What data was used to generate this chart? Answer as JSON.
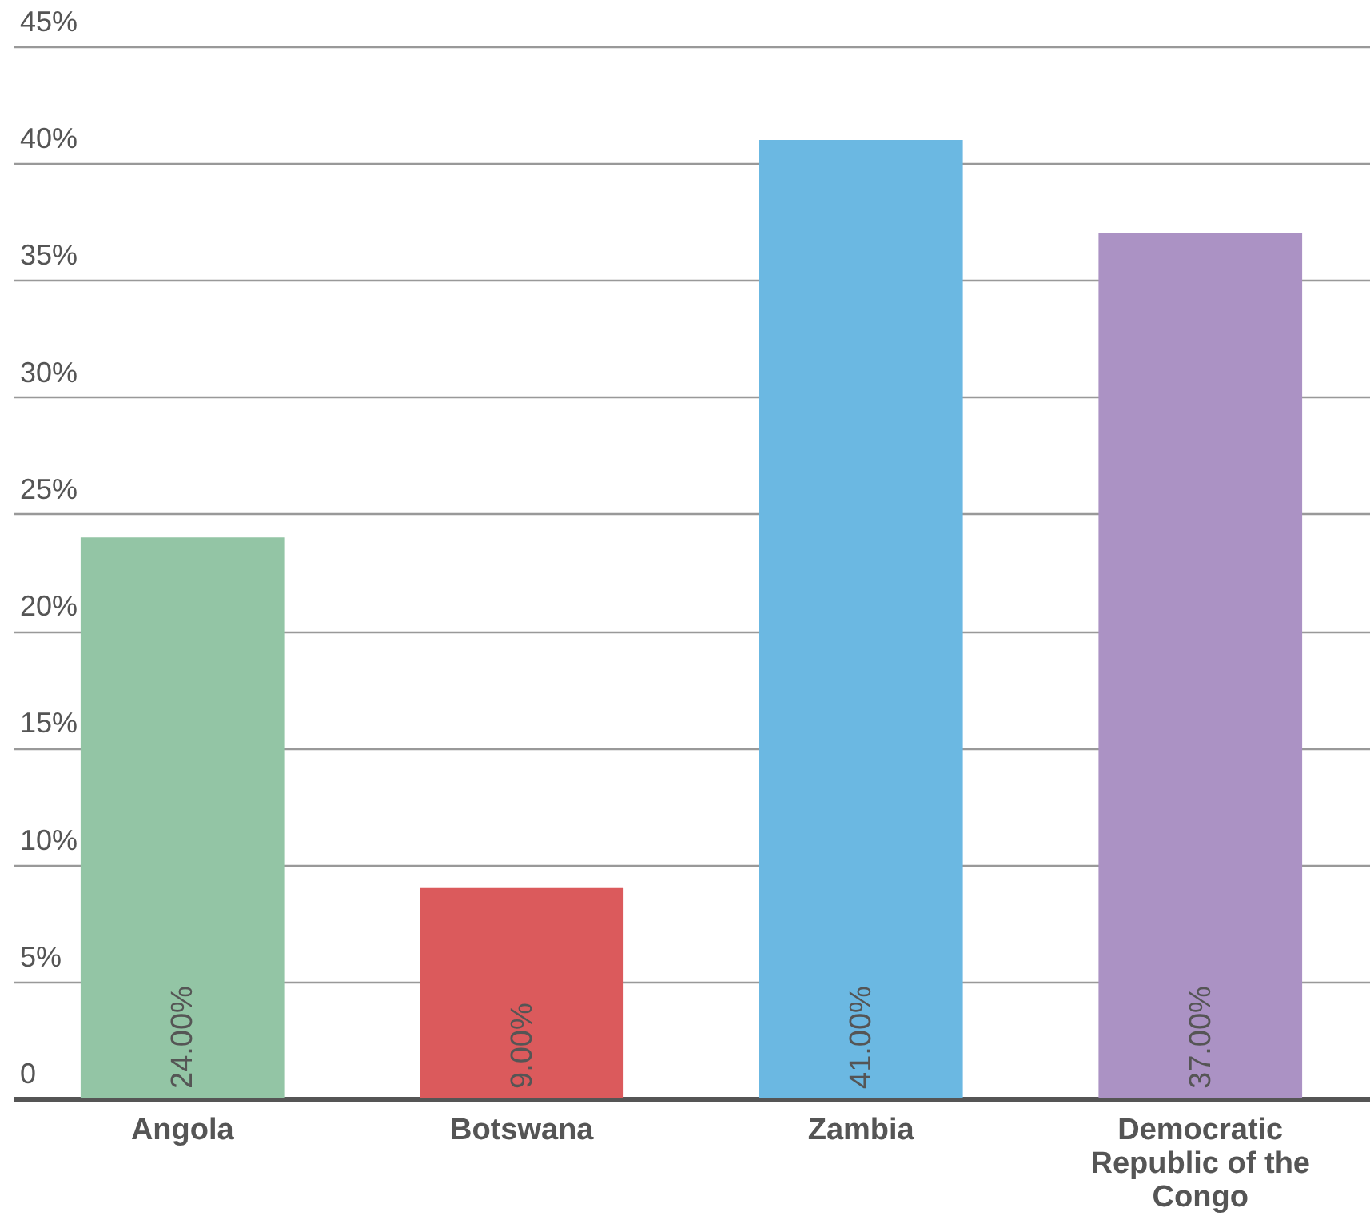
{
  "chart_data": {
    "type": "bar",
    "categories": [
      "Angola",
      "Botswana",
      "Zambia",
      "Democratic Republic of the Congo"
    ],
    "values": [
      24,
      9,
      41,
      37
    ],
    "colors": [
      "#93c5a5",
      "#db5a5c",
      "#6bb8e2",
      "#ab92c4"
    ],
    "value_labels": [
      "24.00%",
      "9.00%",
      "41.00%",
      "37.00%"
    ],
    "ylim": [
      0,
      45
    ],
    "yticks": [
      0,
      {
        "value": 5,
        "label": "5%"
      },
      {
        "value": 10,
        "label": "10%"
      },
      {
        "value": 15,
        "label": "15%"
      },
      {
        "value": 20,
        "label": "20%"
      },
      {
        "value": 25,
        "label": "25%"
      },
      {
        "value": 30,
        "label": "30%"
      },
      {
        "value": 35,
        "label": "35%"
      },
      {
        "value": 40,
        "label": "40%"
      },
      {
        "value": 45,
        "label": "45%"
      }
    ],
    "grid": "y",
    "legend": false
  }
}
